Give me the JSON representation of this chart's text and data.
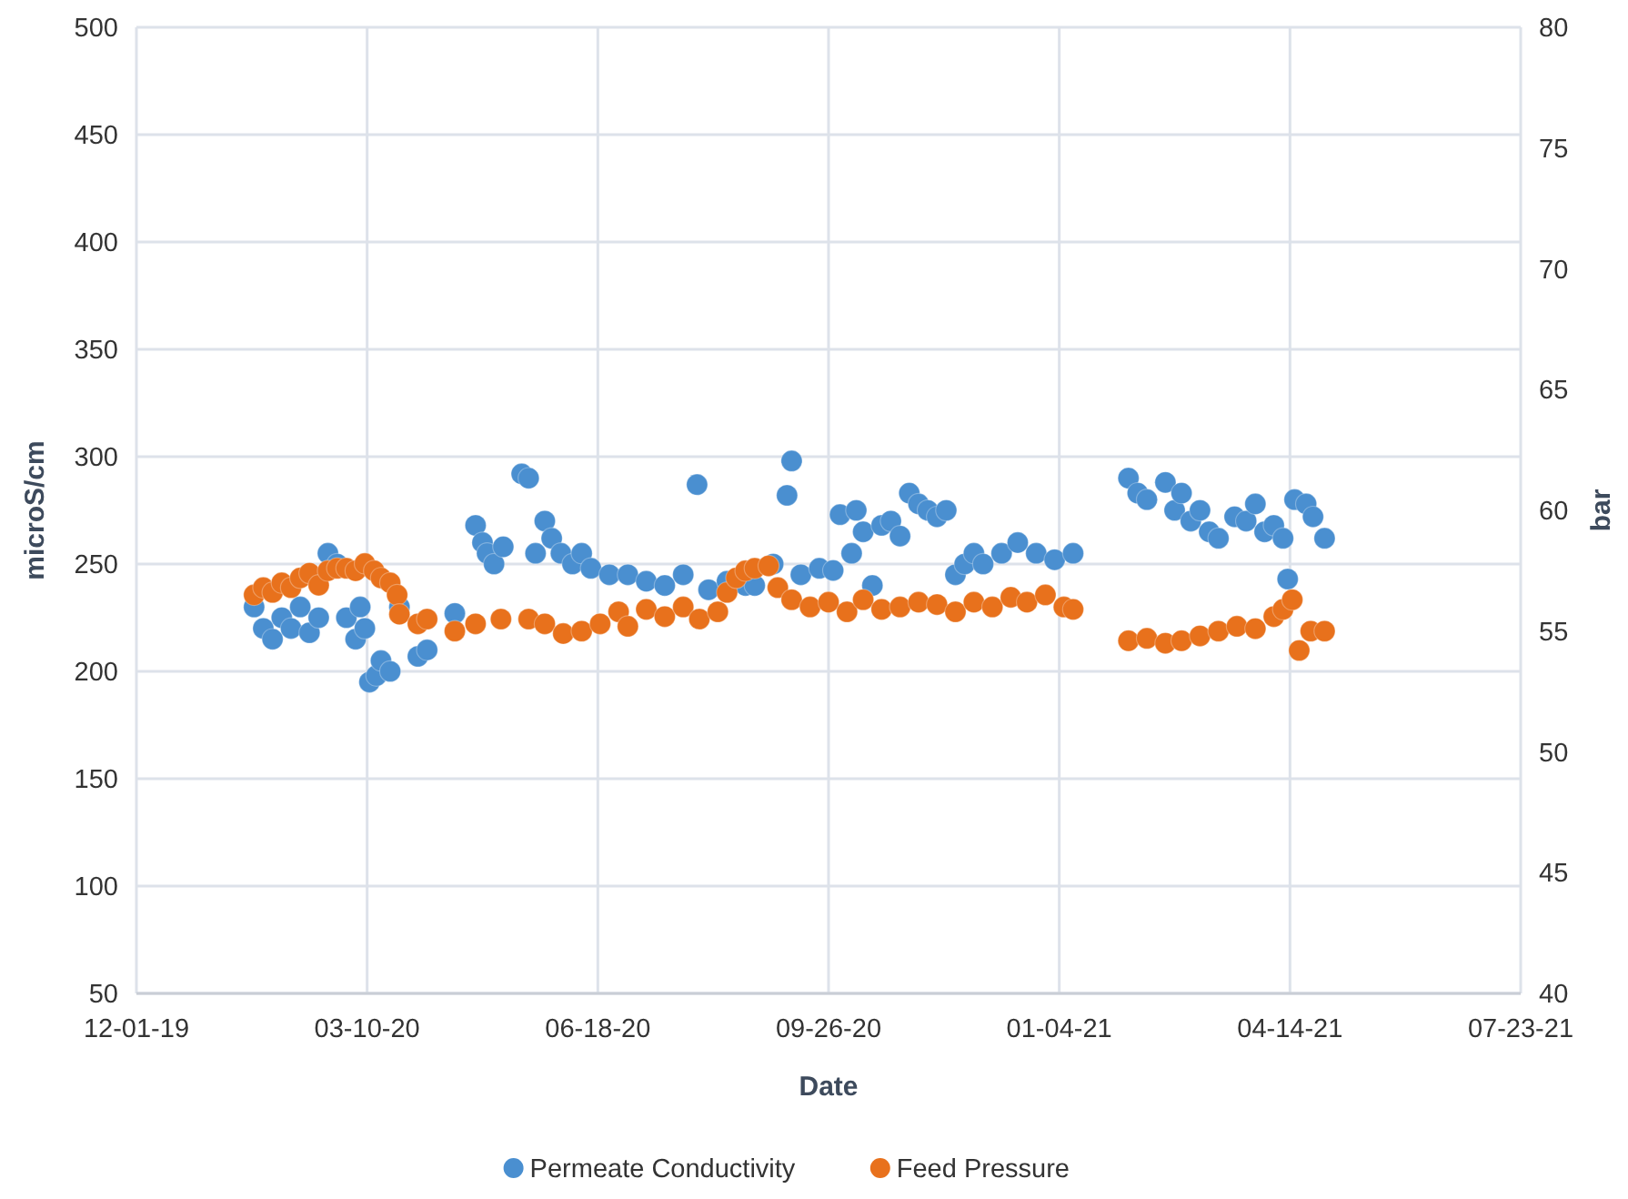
{
  "chart_data": {
    "type": "scatter",
    "xlabel": "Date",
    "ylabel": "microS/cm",
    "y2label": "bar",
    "xlim": [
      "2019-12-01",
      "2021-07-23"
    ],
    "xticks": [
      {
        "value": "2019-12-01",
        "label": "12-01-19"
      },
      {
        "value": "2020-03-10",
        "label": "03-10-20"
      },
      {
        "value": "2020-06-18",
        "label": "06-18-20"
      },
      {
        "value": "2020-09-26",
        "label": "09-26-20"
      },
      {
        "value": "2021-01-04",
        "label": "01-04-21"
      },
      {
        "value": "2021-04-14",
        "label": "04-14-21"
      },
      {
        "value": "2021-07-23",
        "label": "07-23-21"
      }
    ],
    "ylim": [
      50,
      500
    ],
    "yticks": [
      50,
      100,
      150,
      200,
      250,
      300,
      350,
      400,
      450,
      500
    ],
    "y2lim": [
      40,
      80
    ],
    "y2ticks": [
      40,
      45,
      50,
      55,
      60,
      65,
      70,
      75,
      80
    ],
    "grid": true,
    "legend": "bottom",
    "marker": "circle",
    "series": [
      {
        "name": "Permeate Conductivity",
        "color": "#4a8fd0",
        "x": [
          "2020-01-21",
          "2020-01-25",
          "2020-01-29",
          "2020-02-02",
          "2020-02-06",
          "2020-02-10",
          "2020-02-14",
          "2020-02-18",
          "2020-02-22",
          "2020-02-26",
          "2020-03-01",
          "2020-03-05",
          "2020-03-07",
          "2020-03-09",
          "2020-03-11",
          "2020-03-14",
          "2020-03-16",
          "2020-03-20",
          "2020-03-24",
          "2020-04-01",
          "2020-04-05",
          "2020-04-17",
          "2020-04-26",
          "2020-04-29",
          "2020-05-01",
          "2020-05-04",
          "2020-05-08",
          "2020-05-16",
          "2020-05-19",
          "2020-05-22",
          "2020-05-26",
          "2020-05-29",
          "2020-06-02",
          "2020-06-07",
          "2020-06-11",
          "2020-06-15",
          "2020-06-23",
          "2020-07-01",
          "2020-07-09",
          "2020-07-17",
          "2020-07-25",
          "2020-07-31",
          "2020-08-05",
          "2020-08-13",
          "2020-08-21",
          "2020-08-25",
          "2020-09-02",
          "2020-09-08",
          "2020-09-10",
          "2020-09-14",
          "2020-09-22",
          "2020-09-28",
          "2020-10-01",
          "2020-10-06",
          "2020-10-08",
          "2020-10-11",
          "2020-10-15",
          "2020-10-19",
          "2020-10-23",
          "2020-10-27",
          "2020-10-31",
          "2020-11-04",
          "2020-11-08",
          "2020-11-12",
          "2020-11-16",
          "2020-11-20",
          "2020-11-24",
          "2020-11-28",
          "2020-12-02",
          "2020-12-10",
          "2020-12-17",
          "2020-12-25",
          "2021-01-02",
          "2021-01-10",
          "2021-02-03",
          "2021-02-07",
          "2021-02-11",
          "2021-02-19",
          "2021-02-23",
          "2021-02-26",
          "2021-03-02",
          "2021-03-06",
          "2021-03-10",
          "2021-03-14",
          "2021-03-21",
          "2021-03-26",
          "2021-03-30",
          "2021-04-03",
          "2021-04-07",
          "2021-04-11",
          "2021-04-13",
          "2021-04-16",
          "2021-04-21",
          "2021-04-24",
          "2021-04-29"
        ],
        "values": [
          230,
          220,
          215,
          225,
          220,
          230,
          218,
          225,
          255,
          250,
          225,
          215,
          230,
          220,
          195,
          198,
          205,
          200,
          230,
          207,
          210,
          227,
          268,
          260,
          255,
          250,
          258,
          292,
          290,
          255,
          270,
          262,
          255,
          250,
          255,
          248,
          245,
          245,
          242,
          240,
          245,
          287,
          238,
          242,
          240,
          240,
          250,
          282,
          298,
          245,
          248,
          247,
          273,
          255,
          275,
          265,
          240,
          268,
          270,
          263,
          283,
          278,
          275,
          272,
          275,
          245,
          250,
          255,
          250,
          255,
          260,
          255,
          252,
          255,
          290,
          283,
          280,
          288,
          275,
          283,
          270,
          275,
          265,
          262,
          272,
          270,
          278,
          265,
          268,
          262,
          243,
          280,
          278,
          272,
          262
        ]
      },
      {
        "name": "Feed Pressure",
        "color": "#e8711c",
        "axis": "y2",
        "x": [
          "2020-01-21",
          "2020-01-25",
          "2020-01-29",
          "2020-02-02",
          "2020-02-06",
          "2020-02-10",
          "2020-02-14",
          "2020-02-18",
          "2020-02-22",
          "2020-02-26",
          "2020-03-01",
          "2020-03-05",
          "2020-03-09",
          "2020-03-13",
          "2020-03-16",
          "2020-03-20",
          "2020-03-23",
          "2020-03-24",
          "2020-04-01",
          "2020-04-05",
          "2020-04-17",
          "2020-04-26",
          "2020-05-07",
          "2020-05-19",
          "2020-05-26",
          "2020-06-03",
          "2020-06-11",
          "2020-06-19",
          "2020-06-27",
          "2020-07-01",
          "2020-07-09",
          "2020-07-17",
          "2020-07-25",
          "2020-08-01",
          "2020-08-09",
          "2020-08-13",
          "2020-08-17",
          "2020-08-21",
          "2020-08-25",
          "2020-08-31",
          "2020-09-04",
          "2020-09-10",
          "2020-09-18",
          "2020-09-26",
          "2020-10-04",
          "2020-10-11",
          "2020-10-19",
          "2020-10-27",
          "2020-11-04",
          "2020-11-12",
          "2020-11-20",
          "2020-11-28",
          "2020-12-06",
          "2020-12-14",
          "2020-12-21",
          "2020-12-29",
          "2021-01-06",
          "2021-01-10",
          "2021-02-03",
          "2021-02-11",
          "2021-02-19",
          "2021-02-26",
          "2021-03-06",
          "2021-03-14",
          "2021-03-22",
          "2021-03-30",
          "2021-04-07",
          "2021-04-11",
          "2021-04-15",
          "2021-04-18",
          "2021-04-23",
          "2021-04-29"
        ],
        "values": [
          56.5,
          56.8,
          56.6,
          57,
          56.8,
          57.2,
          57.4,
          56.9,
          57.5,
          57.6,
          57.6,
          57.5,
          57.8,
          57.5,
          57.2,
          57.0,
          56.5,
          55.7,
          55.3,
          55.5,
          55.0,
          55.3,
          55.5,
          55.5,
          55.3,
          54.9,
          55.0,
          55.3,
          55.8,
          55.2,
          55.9,
          55.6,
          56.0,
          55.5,
          55.8,
          56.6,
          57.2,
          57.5,
          57.6,
          57.7,
          56.8,
          56.3,
          56.0,
          56.2,
          55.8,
          56.3,
          55.9,
          56.0,
          56.2,
          56.1,
          55.8,
          56.2,
          56.0,
          56.4,
          56.2,
          56.5,
          56.0,
          55.9,
          54.6,
          54.7,
          54.5,
          54.6,
          54.8,
          55.0,
          55.2,
          55.1,
          55.6,
          55.9,
          56.3,
          54.2,
          55.0,
          55.0
        ]
      }
    ]
  }
}
